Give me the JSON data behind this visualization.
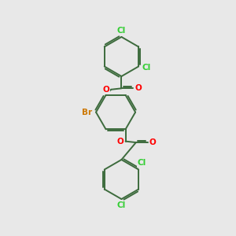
{
  "background_color": "#e8e8e8",
  "bond_color": "#3d6b3d",
  "atom_colors": {
    "O": "#ff0000",
    "Cl": "#32cd32",
    "Br": "#cc7700",
    "C": "#3d6b3d"
  },
  "bond_width": 1.4,
  "font_size": 7.5,
  "figsize": [
    3.0,
    3.0
  ],
  "dpi": 100
}
